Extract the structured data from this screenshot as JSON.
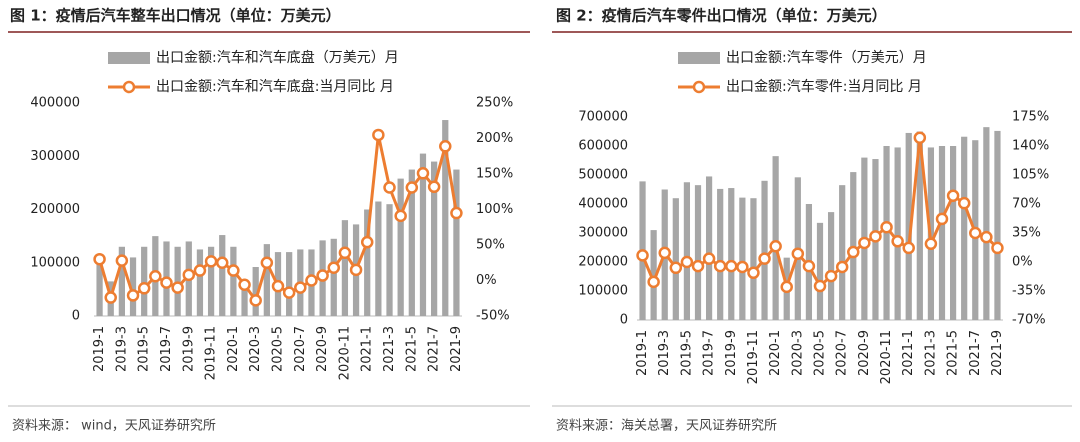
{
  "chart_data": [
    {
      "type": "combo",
      "title": "图 1：疫情后汽车整车出口情况（单位：万美元）",
      "source": "资料来源：    wind，天风证券研究所",
      "categories": [
        "2019-1",
        null,
        "2019-3",
        null,
        "2019-5",
        null,
        "2019-7",
        null,
        "2019-9",
        null,
        "2019-11",
        null,
        "2020-1",
        null,
        "2020-3",
        null,
        "2020-5",
        null,
        "2020-7",
        null,
        "2020-9",
        null,
        "2020-11",
        null,
        "2021-1",
        null,
        "2021-3",
        null,
        "2021-5",
        null,
        "2021-7",
        null,
        "2021-9"
      ],
      "series": [
        {
          "name": "出口金额:汽车和汽车底盘（万美元）月",
          "type": "bar",
          "color": "#a6a6a6",
          "values": [
            100000,
            65000,
            130000,
            110000,
            130000,
            150000,
            140000,
            130000,
            140000,
            125000,
            130000,
            152000,
            130000,
            60000,
            92000,
            135000,
            120000,
            120000,
            125000,
            125000,
            142000,
            145000,
            180000,
            172000,
            200000,
            215000,
            210000,
            258000,
            275000,
            305000,
            290000,
            368000,
            275000
          ]
        },
        {
          "name": "出口金额:汽车和汽车底盘:当月同比 月",
          "type": "line",
          "axis": "y2",
          "color": "#ed7d31",
          "values": [
            30,
            -24,
            28,
            -21,
            -11,
            6,
            -3,
            -10,
            8,
            14,
            27,
            25,
            14,
            -6,
            -28,
            25,
            -8,
            -17,
            -10,
            0,
            7,
            18,
            39,
            15,
            54,
            205,
            131,
            91,
            131,
            151,
            132,
            189,
            95
          ]
        }
      ],
      "ylim": [
        0,
        400000
      ],
      "yticks": [
        0,
        100000,
        200000,
        300000,
        400000
      ],
      "y2lim": [
        -50,
        250
      ],
      "y2ticks": [
        {
          "value": -50,
          "label": "-50%"
        },
        {
          "value": 0,
          "label": "0%"
        },
        {
          "value": 50,
          "label": "50%"
        },
        {
          "value": 100,
          "label": "100%"
        },
        {
          "value": 150,
          "label": "150%"
        },
        {
          "value": 200,
          "label": "200%"
        },
        {
          "value": 250,
          "label": "250%"
        }
      ]
    },
    {
      "type": "combo",
      "title": "图 2：疫情后汽车零件出口情况（单位：万美元）",
      "source": "资料来源：海关总署，天风证券研究所",
      "categories": [
        "2019-1",
        null,
        "2019-3",
        null,
        "2019-5",
        null,
        "2019-7",
        null,
        "2019-9",
        null,
        "2019-11",
        null,
        "2020-1",
        null,
        "2020-3",
        null,
        "2020-5",
        null,
        "2020-7",
        null,
        "2020-9",
        null,
        "2020-11",
        null,
        "2021-1",
        null,
        "2021-3",
        null,
        "2021-5",
        null,
        "2021-7",
        null,
        "2021-9"
      ],
      "series": [
        {
          "name": "出口金额:汽车零件（万美元）月",
          "type": "bar",
          "color": "#a6a6a6",
          "values": [
            478000,
            310000,
            450000,
            420000,
            475000,
            465000,
            495000,
            452000,
            455000,
            422000,
            420000,
            480000,
            565000,
            215000,
            492000,
            400000,
            335000,
            372000,
            465000,
            510000,
            560000,
            555000,
            600000,
            595000,
            645000,
            650000,
            595000,
            600000,
            600000,
            632000,
            620000,
            665000,
            652000
          ]
        },
        {
          "name": "出口金额:汽车零件:当月同比 月",
          "type": "line",
          "axis": "y2",
          "color": "#ed7d31",
          "values": [
            8,
            -24,
            11,
            -7,
            0,
            -5,
            4,
            -5,
            -5,
            -6,
            -13,
            4,
            19,
            -30,
            10,
            -5,
            -29,
            -17,
            -6,
            12,
            23,
            31,
            42,
            25,
            17,
            150,
            22,
            52,
            80,
            71,
            35,
            30,
            17
          ]
        }
      ],
      "ylim": [
        0,
        700000
      ],
      "yticks": [
        0,
        100000,
        200000,
        300000,
        400000,
        500000,
        600000,
        700000
      ],
      "y2lim": [
        -70,
        175
      ],
      "y2ticks": [
        {
          "value": -70,
          "label": "-70%"
        },
        {
          "value": -35,
          "label": "-35%"
        },
        {
          "value": 0,
          "label": "0%"
        },
        {
          "value": 35,
          "label": "35%"
        },
        {
          "value": 70,
          "label": "70%"
        },
        {
          "value": 105,
          "label": "105%"
        },
        {
          "value": 140,
          "label": "140%"
        },
        {
          "value": 175,
          "label": "175%"
        }
      ]
    }
  ]
}
